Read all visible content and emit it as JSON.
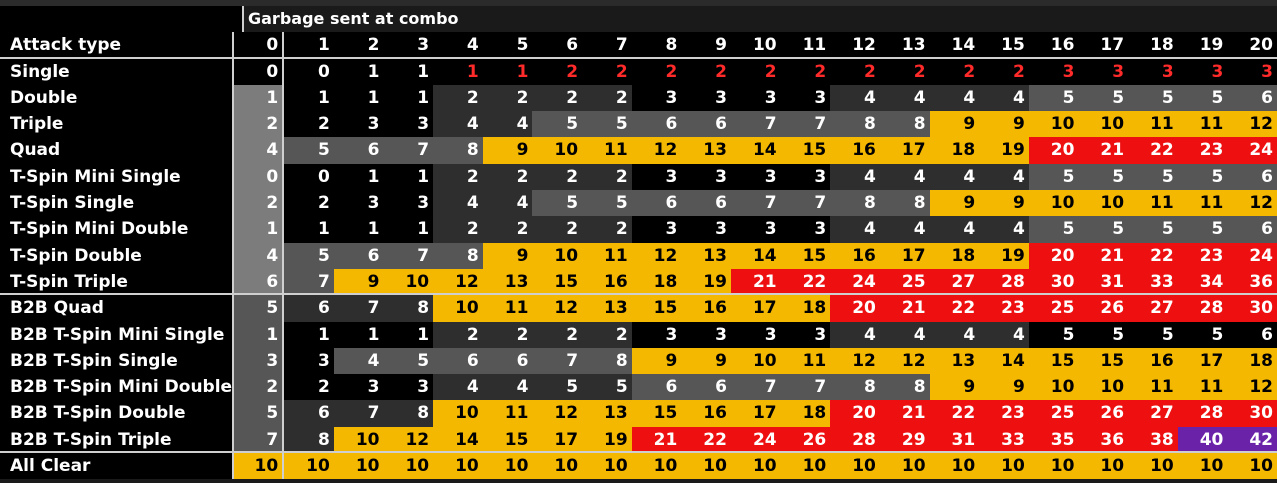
{
  "header": {
    "title": "Garbage sent at combo",
    "row_label": "Attack type",
    "combos": [
      "0",
      "1",
      "2",
      "3",
      "4",
      "5",
      "6",
      "7",
      "8",
      "9",
      "10",
      "11",
      "12",
      "13",
      "14",
      "15",
      "16",
      "17",
      "18",
      "19",
      "20"
    ]
  },
  "colors": {
    "black": "#000000",
    "dark": "#2e2e2e",
    "mid": "#565656",
    "light": "#7c7c7c",
    "yellow": "#f5b800",
    "red": "#ee1010",
    "purple": "#6a22a8",
    "red_text": "#ff2a2a",
    "white_text": "#ffffff",
    "black_text": "#000000"
  },
  "rows": [
    {
      "label": "Single",
      "values": [
        "0",
        "0",
        "1",
        "1",
        "1",
        "1",
        "2",
        "2",
        "2",
        "2",
        "2",
        "2",
        "2",
        "2",
        "2",
        "2",
        "3",
        "3",
        "3",
        "3",
        "3"
      ],
      "bg": "KKKKKKKKKKKKKKKKKKKKK",
      "fg": "WWWWRRRRRRRRRRRRRRRRR"
    },
    {
      "label": "Double",
      "values": [
        "1",
        "1",
        "1",
        "1",
        "2",
        "2",
        "2",
        "2",
        "3",
        "3",
        "3",
        "3",
        "4",
        "4",
        "4",
        "4",
        "5",
        "5",
        "5",
        "5",
        "6"
      ],
      "bg": "LKKKDDDDKKKKDDDDMMMMM",
      "fg": "WWWWWWWWWWWWWWWWWWWWW"
    },
    {
      "label": "Triple",
      "values": [
        "2",
        "2",
        "3",
        "3",
        "4",
        "4",
        "5",
        "5",
        "6",
        "6",
        "7",
        "7",
        "8",
        "8",
        "9",
        "9",
        "10",
        "10",
        "11",
        "11",
        "12"
      ],
      "bg": "LKKKDDMMMMMMMMYYYYYYY",
      "fg": "WWWWWWWWWWWWWWBBBBBBB"
    },
    {
      "label": "Quad",
      "values": [
        "4",
        "5",
        "6",
        "7",
        "8",
        "9",
        "10",
        "11",
        "12",
        "13",
        "14",
        "15",
        "16",
        "17",
        "18",
        "19",
        "20",
        "21",
        "22",
        "23",
        "24"
      ],
      "bg": "LMMMMYYYYYYYYYYYRRRRR",
      "fg": "WWWWWBBBBBBBBBBBWWWWW"
    },
    {
      "label": "T-Spin Mini Single",
      "values": [
        "0",
        "0",
        "1",
        "1",
        "2",
        "2",
        "2",
        "2",
        "3",
        "3",
        "3",
        "3",
        "4",
        "4",
        "4",
        "4",
        "5",
        "5",
        "5",
        "5",
        "6"
      ],
      "bg": "LKKKDDDDKKKKDDDDMMMMM",
      "fg": "WWWWWWWWWWWWWWWWWWWWW"
    },
    {
      "label": "T-Spin Single",
      "values": [
        "2",
        "2",
        "3",
        "3",
        "4",
        "4",
        "5",
        "5",
        "6",
        "6",
        "7",
        "7",
        "8",
        "8",
        "9",
        "9",
        "10",
        "10",
        "11",
        "11",
        "12"
      ],
      "bg": "LKKKDDMMMMMMMMYYYYYYY",
      "fg": "WWWWWWWWWWWWWWBBBBBBB"
    },
    {
      "label": "T-Spin Mini Double",
      "values": [
        "1",
        "1",
        "1",
        "1",
        "2",
        "2",
        "2",
        "2",
        "3",
        "3",
        "3",
        "3",
        "4",
        "4",
        "4",
        "4",
        "5",
        "5",
        "5",
        "5",
        "6"
      ],
      "bg": "LKKKDDDDKKKKDDDDMMMMM",
      "fg": "WWWWWWWWWWWWWWWWWWWWW"
    },
    {
      "label": "T-Spin Double",
      "values": [
        "4",
        "5",
        "6",
        "7",
        "8",
        "9",
        "10",
        "11",
        "12",
        "13",
        "14",
        "15",
        "16",
        "17",
        "18",
        "19",
        "20",
        "21",
        "22",
        "23",
        "24"
      ],
      "bg": "LMMMMYYYYYYYYYYYRRRRR",
      "fg": "WWWWWBBBBBBBBBBBWWWWW"
    },
    {
      "label": "T-Spin Triple",
      "values": [
        "6",
        "7",
        "9",
        "10",
        "12",
        "13",
        "15",
        "16",
        "18",
        "19",
        "21",
        "22",
        "24",
        "25",
        "27",
        "28",
        "30",
        "31",
        "33",
        "34",
        "36"
      ],
      "bg": "LMYYYYYYYYRRRRRRRRRRR",
      "fg": "WWBBBBBBBBWWWWWWWWWWW"
    },
    {
      "label": "B2B Quad",
      "values": [
        "5",
        "6",
        "7",
        "8",
        "10",
        "11",
        "12",
        "13",
        "15",
        "16",
        "17",
        "18",
        "20",
        "21",
        "22",
        "23",
        "25",
        "26",
        "27",
        "28",
        "30"
      ],
      "bg": "MDDDYYYYYYYYRRRRRRRRR",
      "fg": "WWWWBBBBBBBBWWWWWWWWW"
    },
    {
      "label": "B2B T-Spin Mini Single",
      "values": [
        "1",
        "1",
        "1",
        "1",
        "2",
        "2",
        "2",
        "2",
        "3",
        "3",
        "3",
        "3",
        "4",
        "4",
        "4",
        "4",
        "5",
        "5",
        "5",
        "5",
        "6"
      ],
      "bg": "MKKKDDDDKKKKDDDDKKKKK",
      "fg": "WWWWWWWWWWWWWWWWWWWWW"
    },
    {
      "label": "B2B T-Spin Single",
      "values": [
        "3",
        "3",
        "4",
        "5",
        "6",
        "6",
        "7",
        "8",
        "9",
        "9",
        "10",
        "11",
        "12",
        "12",
        "13",
        "14",
        "15",
        "15",
        "16",
        "17",
        "18"
      ],
      "bg": "MKMMMMMMYYYYYYYYYYYYY",
      "fg": "WWWWWWWWBBBBBBBBBBBBB"
    },
    {
      "label": "B2B T-Spin Mini Double",
      "values": [
        "2",
        "2",
        "3",
        "3",
        "4",
        "4",
        "5",
        "5",
        "6",
        "6",
        "7",
        "7",
        "8",
        "8",
        "9",
        "9",
        "10",
        "10",
        "11",
        "11",
        "12"
      ],
      "bg": "MKKKDDDDMMMMMMYYYYYYY",
      "fg": "WWWWWWWWWWWWWWBBBBBBB"
    },
    {
      "label": "B2B T-Spin Double",
      "values": [
        "5",
        "6",
        "7",
        "8",
        "10",
        "11",
        "12",
        "13",
        "15",
        "16",
        "17",
        "18",
        "20",
        "21",
        "22",
        "23",
        "25",
        "26",
        "27",
        "28",
        "30"
      ],
      "bg": "MDDDYYYYYYYYRRRRRRRRR",
      "fg": "WWWWBBBBBBBBWWWWWWWWW"
    },
    {
      "label": "B2B T-Spin Triple",
      "values": [
        "7",
        "8",
        "10",
        "12",
        "14",
        "15",
        "17",
        "19",
        "21",
        "22",
        "24",
        "26",
        "28",
        "29",
        "31",
        "33",
        "35",
        "36",
        "38",
        "40",
        "42"
      ],
      "bg": "MDYYYYYYRRRRRRRRRRRPP",
      "fg": "WWBBBBBBWWWWWWWWWWWWW"
    },
    {
      "label": "All Clear",
      "values": [
        "10",
        "10",
        "10",
        "10",
        "10",
        "10",
        "10",
        "10",
        "10",
        "10",
        "10",
        "10",
        "10",
        "10",
        "10",
        "10",
        "10",
        "10",
        "10",
        "10",
        "10"
      ],
      "bg": "YYYYYYYYYYYYYYYYYYYYY",
      "fg": "BBBBBBBBBBBBBBBBBBBBB"
    }
  ]
}
